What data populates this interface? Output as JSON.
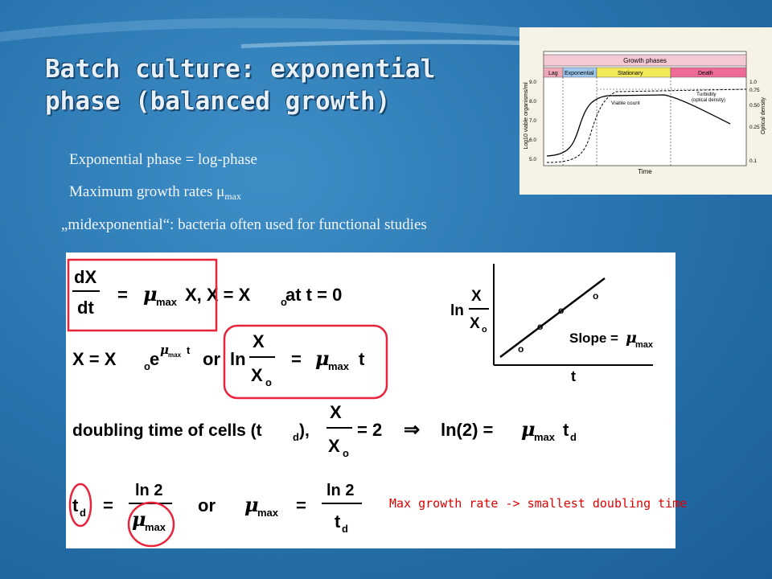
{
  "slide": {
    "title_line1": "Batch culture: exponential",
    "title_line2": "phase (balanced growth)",
    "bullet1": "Exponential phase = log-phase",
    "bullet2_text": "Maximum growth rates  μ",
    "bullet2_sub": "max",
    "bullet3": "„midexponential“: bacteria often used for functional studies",
    "note": "Max growth rate -> smallest doubling time"
  },
  "growth_figure": {
    "header": "Growth phases",
    "phases": [
      {
        "label": "Lag",
        "color": "#f0a8b8"
      },
      {
        "label": "Exponential",
        "color": "#9fc8ef"
      },
      {
        "label": "Stationary",
        "color": "#f3ea57"
      },
      {
        "label": "Death",
        "color": "#ec6b97"
      }
    ],
    "y_left_label": "Log10 viable organisms/ml",
    "y_left_ticks": [
      "9.0",
      "8.0",
      "7.0",
      "6.0",
      "5.0"
    ],
    "y_right_label": "Optical density",
    "y_right_ticks": [
      "1.0",
      "0.75",
      "0.50",
      "0.25",
      "0.1"
    ],
    "x_label": "Time",
    "viable_count_label": "Viable count",
    "turbidity_label": "Turbidity",
    "turbidity_sub": "(optical density)"
  },
  "equations": {
    "dX": "dX",
    "dt": "dt",
    "eq": "=",
    "mu": "μ",
    "max": "max",
    "line1_rest": "X,  X = X",
    "o": "o",
    "at_t": " at t  =  0",
    "X": "X",
    "line2_left": "X  =  X",
    "e": "e",
    "t_sup": "t",
    "or": "or",
    "ln": "ln",
    "t": "t",
    "doubling": "doubling time of cells (t",
    "d": "d",
    "close": "),",
    "eq2": "= 2",
    "arrow": "⇒",
    "ln2_eq": "ln(2)  =",
    "td": "t",
    "ln2": "ln 2",
    "slope": "Slope =",
    "small_ln": "ln",
    "circle_o": "o"
  }
}
